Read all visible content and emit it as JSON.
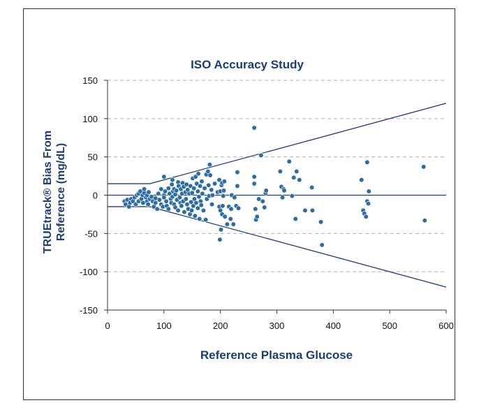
{
  "chart_data": {
    "type": "scatter",
    "title": "ISO Accuracy Study",
    "xlabel": "Reference Plasma Glucose",
    "ylabel_line1": "TRUEtrack® Bias From",
    "ylabel_line2": "Reference (mg/dL)",
    "xlim": [
      0,
      600
    ],
    "ylim": [
      -150,
      150
    ],
    "x_ticks": [
      0,
      100,
      200,
      300,
      400,
      500,
      600
    ],
    "y_ticks": [
      150,
      100,
      50,
      0,
      -50,
      -100,
      -150
    ],
    "x_tick_labels": [
      "0",
      "100",
      "200",
      "300",
      "400",
      "500",
      "600"
    ],
    "y_tick_labels": [
      "150",
      "100",
      "50",
      "0",
      "-50",
      "-100",
      "-150"
    ],
    "grid": "horizontal dashed",
    "colors": {
      "points": "#2e6da4",
      "lines": "#1a3d78",
      "grid": "#b0b0b0",
      "text": "#1a3d78"
    },
    "limit_lines": {
      "upper": [
        [
          0,
          15
        ],
        [
          75,
          15
        ],
        [
          600,
          120
        ]
      ],
      "lower": [
        [
          0,
          -15
        ],
        [
          75,
          -15
        ],
        [
          600,
          -120
        ]
      ],
      "zero": [
        [
          0,
          0
        ],
        [
          600,
          0
        ]
      ]
    },
    "points": [
      [
        30,
        -8
      ],
      [
        32,
        -12
      ],
      [
        35,
        -6
      ],
      [
        38,
        -15
      ],
      [
        40,
        -10
      ],
      [
        42,
        -5
      ],
      [
        45,
        -8
      ],
      [
        48,
        -3
      ],
      [
        50,
        -12
      ],
      [
        52,
        0
      ],
      [
        55,
        2
      ],
      [
        55,
        -8
      ],
      [
        58,
        5
      ],
      [
        60,
        -5
      ],
      [
        62,
        0
      ],
      [
        63,
        -10
      ],
      [
        65,
        3
      ],
      [
        65,
        8
      ],
      [
        68,
        -3
      ],
      [
        70,
        -8
      ],
      [
        70,
        0
      ],
      [
        72,
        -12
      ],
      [
        73,
        4
      ],
      [
        75,
        -5
      ],
      [
        78,
        -2
      ],
      [
        80,
        -8
      ],
      [
        82,
        -15
      ],
      [
        85,
        -10
      ],
      [
        85,
        -4
      ],
      [
        88,
        -18
      ],
      [
        90,
        2
      ],
      [
        92,
        -6
      ],
      [
        95,
        8
      ],
      [
        95,
        -12
      ],
      [
        98,
        -15
      ],
      [
        100,
        24
      ],
      [
        100,
        0
      ],
      [
        100,
        -3
      ],
      [
        102,
        5
      ],
      [
        104,
        -8
      ],
      [
        105,
        -14
      ],
      [
        108,
        9
      ],
      [
        108,
        -18
      ],
      [
        110,
        2
      ],
      [
        112,
        -5
      ],
      [
        113,
        -10
      ],
      [
        114,
        14
      ],
      [
        115,
        20
      ],
      [
        115,
        -2
      ],
      [
        116,
        5
      ],
      [
        118,
        -12
      ],
      [
        118,
        8
      ],
      [
        120,
        -16
      ],
      [
        120,
        1
      ],
      [
        122,
        6
      ],
      [
        123,
        -6
      ],
      [
        125,
        17
      ],
      [
        125,
        -20
      ],
      [
        126,
        12
      ],
      [
        128,
        -3
      ],
      [
        129,
        -10
      ],
      [
        130,
        8
      ],
      [
        131,
        -14
      ],
      [
        132,
        2
      ],
      [
        133,
        16
      ],
      [
        134,
        -8
      ],
      [
        135,
        11
      ],
      [
        136,
        -22
      ],
      [
        138,
        4
      ],
      [
        139,
        -5
      ],
      [
        140,
        14
      ],
      [
        141,
        -12
      ],
      [
        142,
        7
      ],
      [
        143,
        -18
      ],
      [
        145,
        2
      ],
      [
        146,
        -25
      ],
      [
        147,
        12
      ],
      [
        148,
        -9
      ],
      [
        149,
        -20
      ],
      [
        150,
        3
      ],
      [
        151,
        22
      ],
      [
        152,
        -14
      ],
      [
        153,
        9
      ],
      [
        154,
        -5
      ],
      [
        155,
        -27
      ],
      [
        156,
        24
      ],
      [
        157,
        -10
      ],
      [
        158,
        15
      ],
      [
        160,
        -17
      ],
      [
        160,
        5
      ],
      [
        161,
        28
      ],
      [
        162,
        -2
      ],
      [
        163,
        -31
      ],
      [
        164,
        12
      ],
      [
        165,
        -8
      ],
      [
        166,
        -13
      ],
      [
        167,
        18
      ],
      [
        168,
        2
      ],
      [
        170,
        -20
      ],
      [
        172,
        9
      ],
      [
        174,
        -32
      ],
      [
        175,
        27
      ],
      [
        176,
        -5
      ],
      [
        178,
        31
      ],
      [
        179,
        13
      ],
      [
        180,
        -1
      ],
      [
        181,
        40
      ],
      [
        182,
        26
      ],
      [
        184,
        7
      ],
      [
        185,
        -12
      ],
      [
        186,
        0
      ],
      [
        190,
        15
      ],
      [
        195,
        4
      ],
      [
        198,
        20
      ],
      [
        198,
        -15
      ],
      [
        199,
        -58
      ],
      [
        200,
        -20
      ],
      [
        200,
        5
      ],
      [
        201,
        -45
      ],
      [
        202,
        13
      ],
      [
        203,
        16
      ],
      [
        203,
        -25
      ],
      [
        204,
        -14
      ],
      [
        205,
        -1
      ],
      [
        206,
        6
      ],
      [
        207,
        18
      ],
      [
        208,
        -28
      ],
      [
        212,
        -38
      ],
      [
        215,
        -15
      ],
      [
        218,
        -31
      ],
      [
        219,
        -18
      ],
      [
        220,
        0
      ],
      [
        223,
        -38
      ],
      [
        225,
        -3
      ],
      [
        228,
        -14
      ],
      [
        230,
        30
      ],
      [
        230,
        12
      ],
      [
        232,
        -17
      ],
      [
        260,
        88
      ],
      [
        260,
        24
      ],
      [
        260,
        15
      ],
      [
        262,
        -18
      ],
      [
        263,
        -32
      ],
      [
        265,
        -28
      ],
      [
        268,
        -5
      ],
      [
        272,
        52
      ],
      [
        275,
        -8
      ],
      [
        278,
        -16
      ],
      [
        280,
        3
      ],
      [
        281,
        6
      ],
      [
        306,
        31
      ],
      [
        308,
        11
      ],
      [
        310,
        -3
      ],
      [
        312,
        8
      ],
      [
        313,
        6
      ],
      [
        322,
        44
      ],
      [
        327,
        -1
      ],
      [
        330,
        23
      ],
      [
        333,
        -31
      ],
      [
        335,
        31
      ],
      [
        340,
        20
      ],
      [
        350,
        -20
      ],
      [
        362,
        10
      ],
      [
        363,
        -20
      ],
      [
        378,
        -35
      ],
      [
        380,
        -65
      ],
      [
        450,
        20
      ],
      [
        453,
        -20
      ],
      [
        455,
        -24
      ],
      [
        458,
        -28
      ],
      [
        460,
        43
      ],
      [
        460,
        -8
      ],
      [
        462,
        -11
      ],
      [
        463,
        5
      ],
      [
        560,
        37
      ],
      [
        562,
        -33
      ]
    ]
  }
}
